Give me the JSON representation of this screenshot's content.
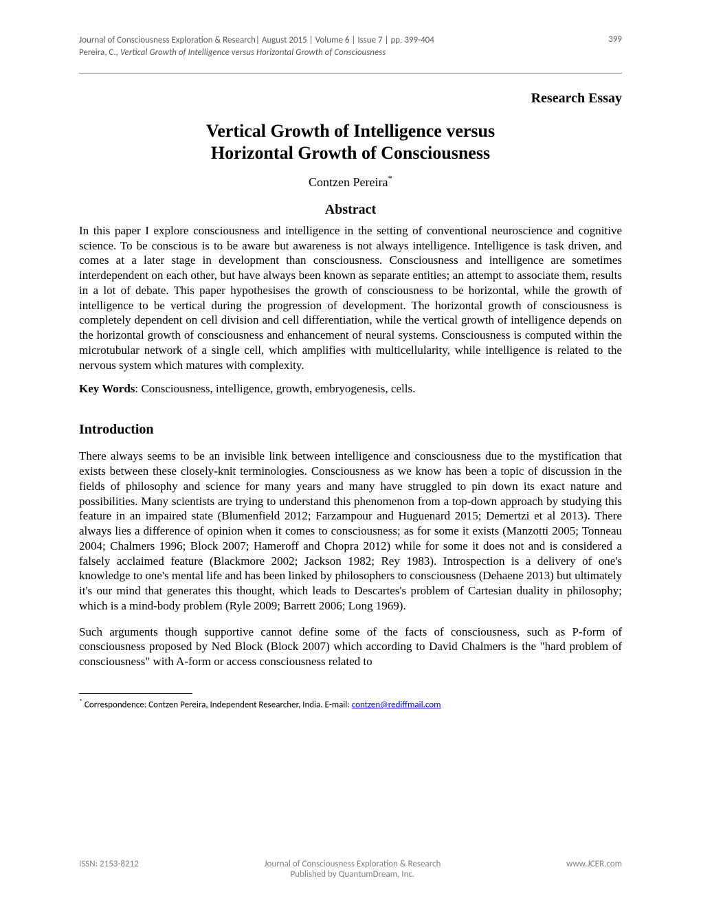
{
  "header": {
    "journal_line": "Journal of Consciousness Exploration & Research| August 2015 | Volume 6 | Issue 7 | pp. 399-404",
    "citation_author": "Pereira, C., ",
    "citation_title": "Vertical Growth of Intelligence versus Horizontal Growth of Consciousness",
    "page_number": "399"
  },
  "essay_type": "Research Essay",
  "title_line1": "Vertical Growth of Intelligence versus",
  "title_line2": "Horizontal Growth of Consciousness",
  "author": "Contzen Pereira",
  "author_marker": "*",
  "abstract_heading": "Abstract",
  "abstract_text": "In this paper I explore consciousness and intelligence in the setting of conventional neuroscience and cognitive science. To be conscious is to be aware but awareness is not always intelligence. Intelligence is task driven, and comes at a later stage in development than consciousness. Consciousness and intelligence are sometimes interdependent on each other, but have always been known as separate entities; an attempt to associate them, results in a lot of debate. This paper hypothesises the growth of consciousness to be horizontal, while the growth of intelligence to be vertical during the progression of development. The horizontal growth of consciousness is completely dependent on cell division and cell differentiation, while the vertical growth of intelligence depends on the horizontal growth of consciousness and enhancement of neural systems. Consciousness is computed within the microtubular network of a single cell, which amplifies with multicellularity, while intelligence is related to the nervous system which matures with complexity.",
  "keywords_label": "Key Words",
  "keywords_text": ": Consciousness, intelligence, growth, embryogenesis, cells.",
  "intro_heading": "Introduction",
  "intro_para1": "There always seems to be an invisible link between intelligence and consciousness due to the mystification that exists between these closely-knit terminologies. Consciousness as we know has been a topic of discussion in the fields of philosophy and science for many years and many have struggled to pin down its exact nature and possibilities. Many scientists are trying to understand this phenomenon from a top-down approach by studying this feature in an impaired state (Blumenfield 2012; Farzampour and Huguenard 2015; Demertzi et al 2013). There always lies a difference of opinion when it comes to consciousness; as for some it exists (Manzotti 2005; Tonneau 2004; Chalmers 1996; Block 2007; Hameroff and Chopra 2012) while for some it does not and is considered a falsely acclaimed feature (Blackmore 2002; Jackson 1982; Rey 1983). Introspection is a delivery of one's knowledge to one's mental life and has been linked by philosophers to consciousness (Dehaene 2013) but ultimately it's our mind that generates this thought, which leads to Descartes's problem of Cartesian duality in philosophy; which is a mind-body problem (Ryle 2009; Barrett 2006; Long 1969).",
  "intro_para2": "Such arguments though supportive cannot define some of the facts of consciousness, such as P-form of consciousness proposed by Ned Block (Block 2007) which according to David Chalmers is the \"hard problem of consciousness\" with A-form or access consciousness related to",
  "footnote": {
    "marker": "*",
    "text": " Correspondence: Contzen Pereira, Independent Researcher, India. E-mail: ",
    "email": "contzen@rediffmail.com"
  },
  "footer": {
    "issn": "ISSN: 2153-8212",
    "center_line1": "Journal of Consciousness Exploration & Research",
    "center_line2": "Published by  QuantumDream, Inc.",
    "website": "www.JCER.com"
  }
}
